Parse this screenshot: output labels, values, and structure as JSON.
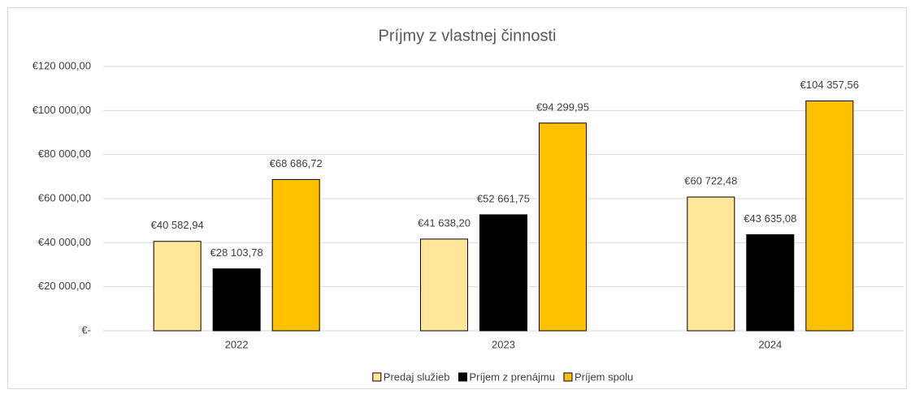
{
  "chart_data": {
    "type": "bar",
    "title": "Príjmy z vlastnej činnosti",
    "categories": [
      "2022",
      "2023",
      "2024"
    ],
    "series": [
      {
        "name": "Predaj služieb",
        "color": "#FFE699",
        "values": [
          40582.94,
          41638.2,
          60722.48
        ],
        "value_labels": [
          "€40 582,94",
          "€41 638,20",
          "€60 722,48"
        ]
      },
      {
        "name": "Príjem z prenájmu",
        "color": "#000000",
        "values": [
          28103.78,
          52661.75,
          43635.08
        ],
        "value_labels": [
          "€28 103,78",
          "€52 661,75",
          "€43 635,08"
        ]
      },
      {
        "name": "Príjem spolu",
        "color": "#FFC000",
        "values": [
          68686.72,
          94299.95,
          104357.56
        ],
        "value_labels": [
          "€68 686,72",
          "€94 299,95",
          "€104 357,56"
        ]
      }
    ],
    "ylim": [
      0,
      120000
    ],
    "yticks": [
      {
        "value": 0,
        "label": "€-"
      },
      {
        "value": 20000,
        "label": "€20 000,00"
      },
      {
        "value": 40000,
        "label": "€40 000,00"
      },
      {
        "value": 60000,
        "label": "€60 000,00"
      },
      {
        "value": 80000,
        "label": "€80 000,00"
      },
      {
        "value": 100000,
        "label": "€100 000,00"
      },
      {
        "value": 120000,
        "label": "€120 000,00"
      }
    ],
    "grid": true,
    "legend": "bottom"
  }
}
